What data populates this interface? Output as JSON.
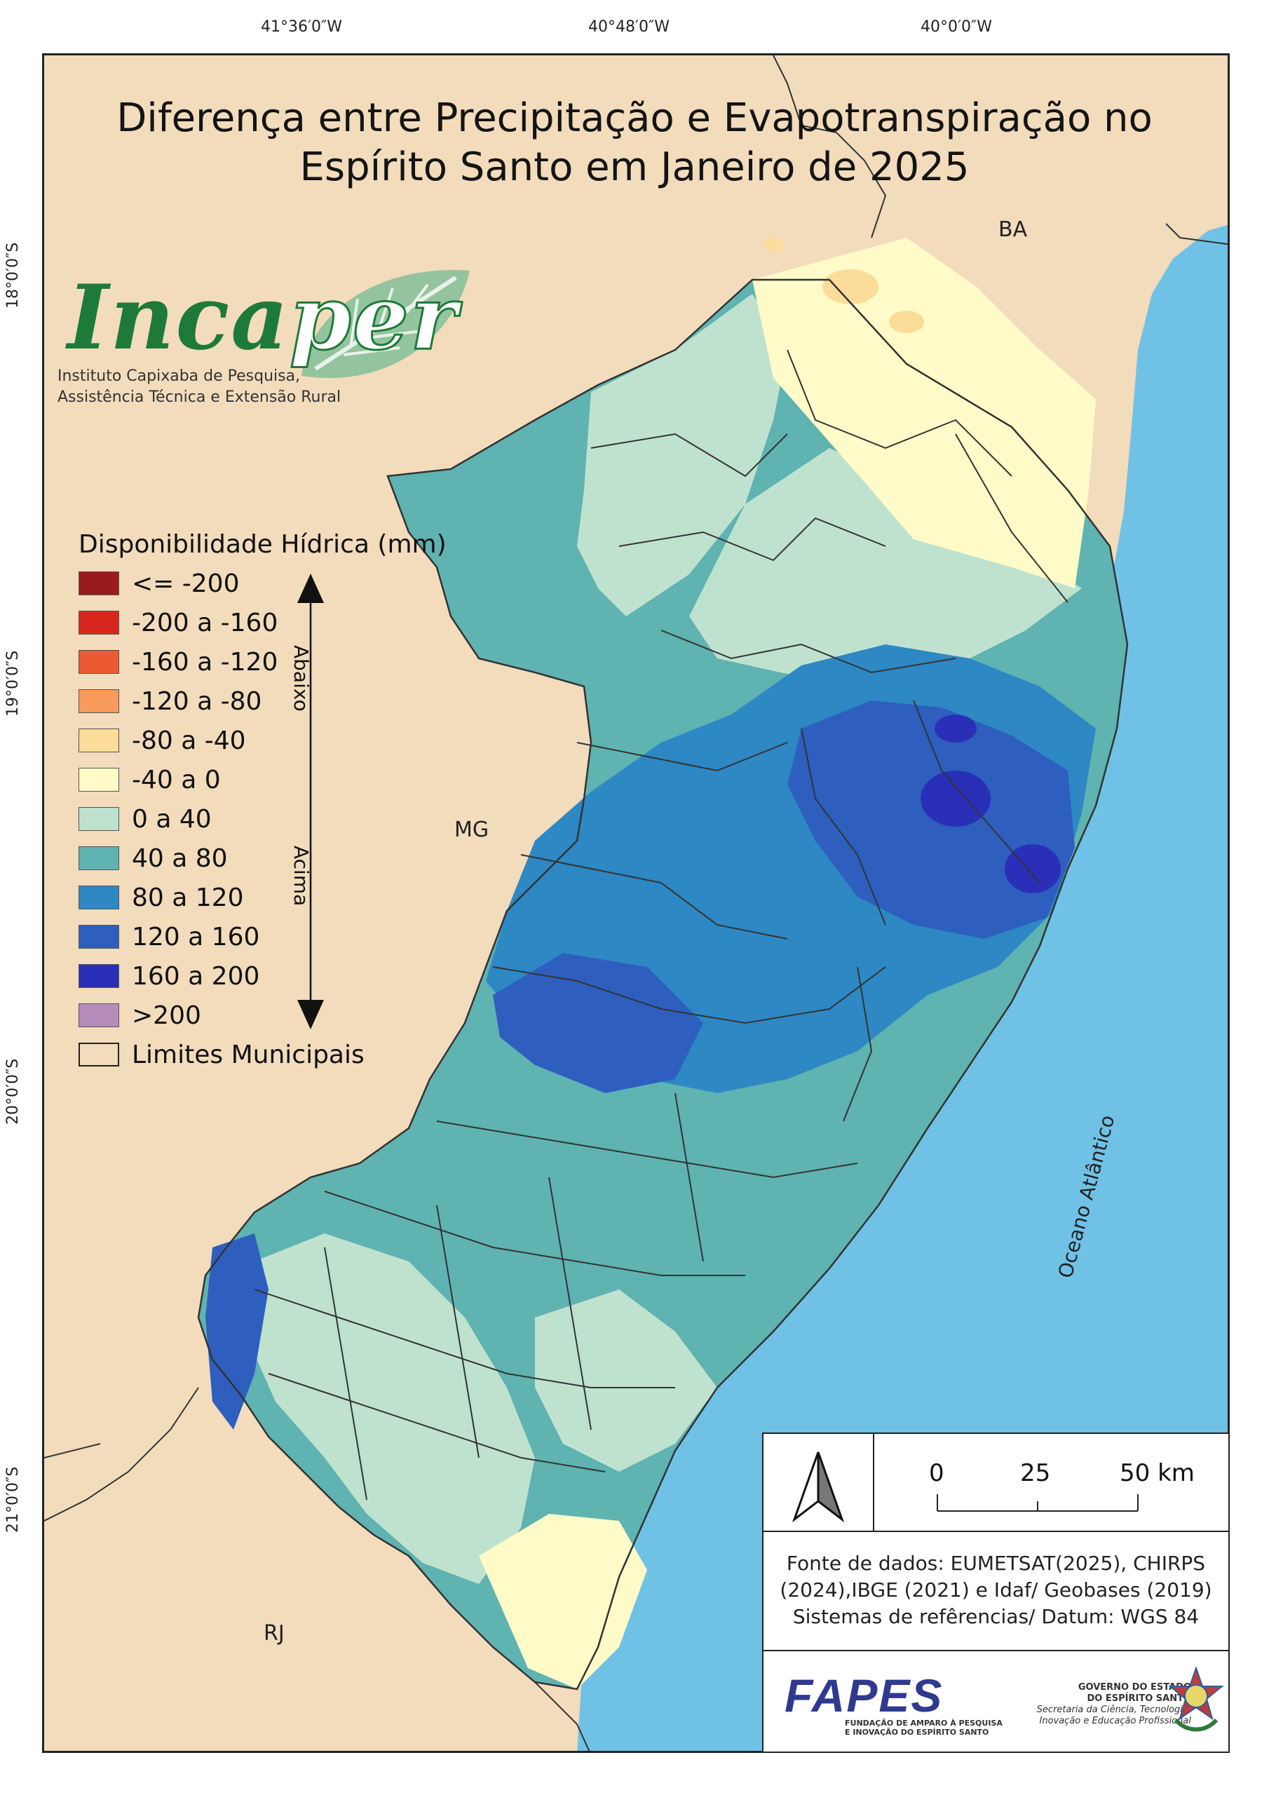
{
  "title_line1": "Diferença entre Precipitação e Evapotranspiração no",
  "title_line2": "Espírito Santo em Janeiro de 2025",
  "grid_labels": {
    "top": [
      "41°36′0″W",
      "40°48′0″W",
      "40°0′0″W"
    ],
    "left": [
      "18°0′0″S",
      "19°0′0″S",
      "20°0′0″S",
      "21°0′0″S"
    ]
  },
  "logo": {
    "name_a": "Inca",
    "name_b": "per",
    "subtitle1": "Instituto Capixaba de Pesquisa,",
    "subtitle2": "Assistência Técnica e Extensão Rural"
  },
  "regions": {
    "ba": "BA",
    "mg": "MG",
    "rj": "RJ",
    "ocean": "Oceano Atlântico"
  },
  "legend": {
    "title": "Disponibilidade Hídrica (mm)",
    "items": [
      {
        "label": "<= -200",
        "color": "#9a1b1e"
      },
      {
        "label": "-200 a -160",
        "color": "#d9261c"
      },
      {
        "label": "-160 a -120",
        "color": "#ec5a32"
      },
      {
        "label": "-120 a -80",
        "color": "#f79b5d"
      },
      {
        "label": "-80 a -40",
        "color": "#fcdc99"
      },
      {
        "label": "-40 a 0",
        "color": "#fefbc8"
      },
      {
        "label": "0 a 40",
        "color": "#bfe2cf"
      },
      {
        "label": "40 a 80",
        "color": "#5fb3b1"
      },
      {
        "label": "80 a 120",
        "color": "#2d88c4"
      },
      {
        "label": "120 a 160",
        "color": "#2e5fbf"
      },
      {
        "label": "160 a 200",
        "color": "#2a2fb8"
      },
      {
        "label": ">200",
        "color": "#b58cba"
      },
      {
        "label": "Limites Municipais",
        "color": "#f2dcbc"
      }
    ],
    "arrow_up_label": "Abaixo",
    "arrow_down_label": "Acima"
  },
  "scale": {
    "labels": [
      "0",
      "25",
      "50 km"
    ]
  },
  "source": {
    "line1": "Fonte de dados: EUMETSAT(2025), CHIRPS",
    "line2": "(2024),IBGE (2021) e Idaf/ Geobases (2019)",
    "line3": "Sistemas de refêrencias/ Datum: WGS 84"
  },
  "fapes": {
    "name": "FAPES",
    "sub1": "FUNDAÇÃO DE AMPARO À PESQUISA",
    "sub2": "E INOVAÇÃO DO ESPÍRITO SANTO"
  },
  "gov": {
    "line1": "GOVERNO DO ESTADO",
    "line2": "DO ESPÍRITO SANTO",
    "line3": "Secretaria da Ciência, Tecnologia,",
    "line4": "Inovação e Educação Profissional"
  }
}
